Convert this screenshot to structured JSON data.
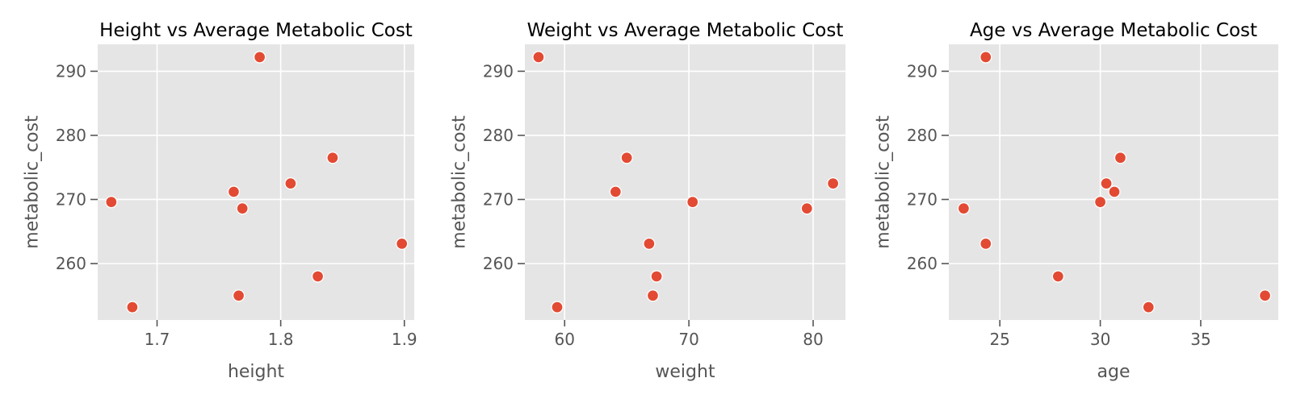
{
  "colors": {
    "panel_bg": "#E5E5E5",
    "grid": "#FFFFFF",
    "point": "#E24A33",
    "text": "#555555",
    "title": "#000000"
  },
  "chart_data": [
    {
      "type": "scatter",
      "title": "Height vs Average Metabolic Cost",
      "xlabel": "height",
      "ylabel": "metabolic_cost",
      "xlim": [
        1.652,
        1.908
      ],
      "ylim": [
        251.2,
        294.2
      ],
      "xticks": [
        1.7,
        1.8,
        1.9
      ],
      "xtick_labels": [
        "1.7",
        "1.8",
        "1.9"
      ],
      "yticks": [
        260,
        270,
        280,
        290
      ],
      "ytick_labels": [
        "260",
        "270",
        "280",
        "290"
      ],
      "grid": true,
      "x": [
        1.663,
        1.68,
        1.762,
        1.766,
        1.769,
        1.783,
        1.808,
        1.83,
        1.842,
        1.898
      ],
      "y": [
        269.6,
        253.2,
        271.2,
        255.0,
        268.6,
        292.2,
        272.5,
        258.0,
        276.5,
        263.1
      ]
    },
    {
      "type": "scatter",
      "title": "Weight vs Average Metabolic Cost",
      "xlabel": "weight",
      "ylabel": "metabolic_cost",
      "xlim": [
        56.8,
        82.6
      ],
      "ylim": [
        251.2,
        294.2
      ],
      "xticks": [
        60,
        70,
        80
      ],
      "xtick_labels": [
        "60",
        "70",
        "80"
      ],
      "yticks": [
        260,
        270,
        280,
        290
      ],
      "ytick_labels": [
        "260",
        "270",
        "280",
        "290"
      ],
      "grid": true,
      "x": [
        57.9,
        59.4,
        64.1,
        65.0,
        66.8,
        67.1,
        67.4,
        70.3,
        79.5,
        81.6
      ],
      "y": [
        292.2,
        253.2,
        271.2,
        276.5,
        263.1,
        255.0,
        258.0,
        269.6,
        268.6,
        272.5
      ]
    },
    {
      "type": "scatter",
      "title": "Age vs Average Metabolic Cost",
      "xlabel": "age",
      "ylabel": "metabolic_cost",
      "xlim": [
        22.46,
        38.86
      ],
      "ylim": [
        251.2,
        294.2
      ],
      "xticks": [
        25,
        30,
        35
      ],
      "xtick_labels": [
        "25",
        "30",
        "35"
      ],
      "yticks": [
        260,
        270,
        280,
        290
      ],
      "ytick_labels": [
        "260",
        "270",
        "280",
        "290"
      ],
      "grid": true,
      "x": [
        23.2,
        24.3,
        24.3,
        27.9,
        30.0,
        30.3,
        30.7,
        31.0,
        32.4,
        38.2
      ],
      "y": [
        268.6,
        292.2,
        263.1,
        258.0,
        269.6,
        272.5,
        271.2,
        276.5,
        253.2,
        255.0
      ]
    }
  ]
}
